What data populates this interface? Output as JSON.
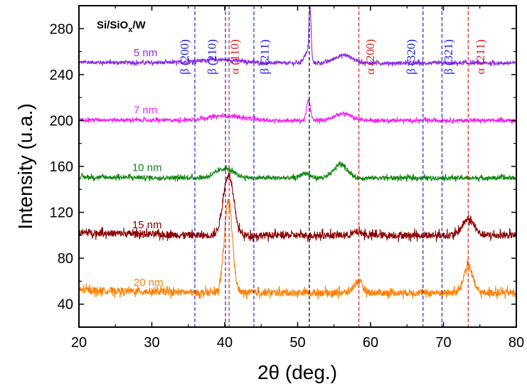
{
  "chart_data": {
    "type": "line",
    "xlabel": "2θ (deg.)",
    "ylabel": "Intensity (u.a.)",
    "xlim": [
      20,
      80
    ],
    "ylim": [
      20,
      300
    ],
    "x_ticks": [
      20,
      30,
      40,
      50,
      60,
      70,
      80
    ],
    "y_ticks": [
      40,
      80,
      120,
      160,
      200,
      240,
      280
    ],
    "grid": false,
    "sample_label": {
      "base": "Si/SiO",
      "sub": "x",
      "rest": "/W"
    },
    "series": [
      {
        "name": "5 nm",
        "color": "#8a2be2",
        "baseline": 250,
        "noise": 1.5,
        "label_x": 27.5,
        "label_y": 256,
        "peaks": [
          {
            "center": 51.7,
            "height": 45,
            "width": 0.15
          },
          {
            "center": 51.2,
            "height": 8,
            "width": 0.4
          },
          {
            "center": 56.3,
            "height": 7,
            "width": 1.2
          },
          {
            "center": 39.0,
            "height": 3,
            "width": 3.0
          }
        ]
      },
      {
        "name": "7 nm",
        "color": "#ee22ee",
        "baseline": 200,
        "noise": 1.5,
        "label_x": 27.5,
        "label_y": 206,
        "peaks": [
          {
            "center": 51.5,
            "height": 18,
            "width": 0.25
          },
          {
            "center": 56.2,
            "height": 6,
            "width": 1.2
          },
          {
            "center": 40.0,
            "height": 4,
            "width": 2.5
          }
        ]
      },
      {
        "name": "10 nm",
        "color": "#118811",
        "baseline": 150,
        "noise": 1.8,
        "label_x": 27.3,
        "label_y": 156,
        "peaks": [
          {
            "center": 40.0,
            "height": 8,
            "width": 1.2
          },
          {
            "center": 51.0,
            "height": 4,
            "width": 0.6
          },
          {
            "center": 55.9,
            "height": 12,
            "width": 0.9
          }
        ]
      },
      {
        "name": "15 nm",
        "color": "#8b0000",
        "baseline": 100,
        "noise": 3.0,
        "label_x": 27.3,
        "label_y": 106,
        "peaks": [
          {
            "center": 40.5,
            "height": 53,
            "width": 0.7
          },
          {
            "center": 58.3,
            "height": 3,
            "width": 0.6
          },
          {
            "center": 73.4,
            "height": 14,
            "width": 0.8
          }
        ]
      },
      {
        "name": "20 nm",
        "color": "#ff7f00",
        "baseline": 50,
        "noise": 3.0,
        "label_x": 27.5,
        "label_y": 56,
        "peaks": [
          {
            "center": 40.5,
            "height": 80,
            "width": 0.55
          },
          {
            "center": 58.3,
            "height": 10,
            "width": 0.6
          },
          {
            "center": 73.4,
            "height": 24,
            "width": 0.6
          }
        ]
      }
    ],
    "reference_lines": [
      {
        "x": 35.9,
        "color": "#2222dd",
        "label": "β (200)",
        "label_x": 35.0
      },
      {
        "x": 40.1,
        "color": "#2222dd",
        "label": "β (210)",
        "label_x": 38.8
      },
      {
        "x": 40.6,
        "color": "#dd2222",
        "label": "α (110)",
        "label_x": 41.9
      },
      {
        "x": 44.0,
        "color": "#2222dd",
        "label": "β (211)",
        "label_x": 46.0
      },
      {
        "x": 51.6,
        "color": "#000000",
        "label": ""
      },
      {
        "x": 58.4,
        "color": "#dd2222",
        "label": "α (200)",
        "label_x": 60.5
      },
      {
        "x": 67.2,
        "color": "#2222dd",
        "label": "β (320)",
        "label_x": 66.1
      },
      {
        "x": 69.8,
        "color": "#2222dd",
        "label": "β (321)",
        "label_x": 71.2
      },
      {
        "x": 73.4,
        "color": "#dd2222",
        "label": "α (211)",
        "label_x": 75.6
      }
    ]
  }
}
